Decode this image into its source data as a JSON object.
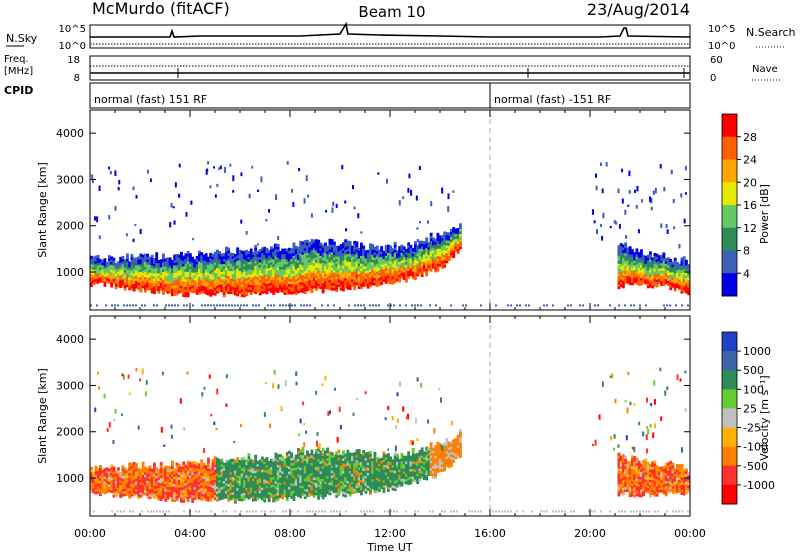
{
  "header": {
    "station": "McMurdo (fitACF)",
    "beam": "Beam 10",
    "date": "23/Aug/2014"
  },
  "summary": {
    "nsky_label": "N.Sky",
    "nsky_ticks": [
      "10^5",
      "10^0"
    ],
    "nsearch_label": "N.Search",
    "nsearch_ticks": [
      "10^5",
      "10^0"
    ],
    "freq_label": "Freq.",
    "freq_unit": "[MHz]",
    "freq_ticks": [
      "18",
      "8"
    ],
    "nave_label": "Nave",
    "nave_ticks": [
      "60",
      "0"
    ],
    "cpid_label": "CPID",
    "cpid_segments": [
      {
        "start": 0,
        "end": 16,
        "text": "normal (fast) 151 RF"
      },
      {
        "start": 16,
        "end": 24,
        "text": "normal (fast) -151 RF"
      }
    ]
  },
  "chart_data": [
    {
      "type": "heatmap",
      "ylabel": "Slant Range [km]",
      "ylim": [
        180,
        4500
      ],
      "yticks": [
        "1000",
        "2000",
        "3000",
        "4000"
      ],
      "xlim": [
        0,
        24
      ],
      "cbar_label": "Power [dB]",
      "cbar_ticks": [
        "4",
        "8",
        "12",
        "16",
        "20",
        "24",
        "28"
      ],
      "cbar_colors": [
        "#0000e6",
        "#3b60b8",
        "#2e8b57",
        "#64c864",
        "#e8e800",
        "#ffa500",
        "#ff6000",
        "#ff0000"
      ],
      "mode_change_time": 16,
      "echo_bands": [
        {
          "t": [
            0.0,
            1.0,
            2.0,
            3.0,
            4.0,
            5.0,
            6.0,
            7.0,
            8.0,
            9.0,
            10.0,
            11.0,
            12.0,
            13.0,
            14.0,
            14.8
          ],
          "lower": [
            750,
            700,
            620,
            540,
            520,
            520,
            520,
            540,
            560,
            600,
            640,
            700,
            760,
            900,
            1100,
            1500
          ],
          "upper": [
            1250,
            1250,
            1300,
            1300,
            1350,
            1400,
            1450,
            1500,
            1550,
            1650,
            1600,
            1550,
            1500,
            1600,
            1800,
            2000
          ]
        },
        {
          "t": [
            21.1,
            22.0,
            23.0,
            24.0
          ],
          "lower": [
            700,
            720,
            700,
            500
          ],
          "upper": [
            1550,
            1400,
            1300,
            1200
          ]
        }
      ]
    },
    {
      "type": "heatmap",
      "ylabel": "Slant Range [km]",
      "ylim": [
        180,
        4500
      ],
      "yticks": [
        "1000",
        "2000",
        "3000",
        "4000"
      ],
      "xlim": [
        0,
        24
      ],
      "xticks": [
        "00:00",
        "04:00",
        "08:00",
        "12:00",
        "16:00",
        "20:00",
        "00:00"
      ],
      "xlabel": "Time UT",
      "cbar_label": "Velocity [m s⁻¹]",
      "cbar_ticks": [
        "1000",
        "500",
        "100",
        "25",
        "-25",
        "-100",
        "-500",
        "-1000"
      ],
      "cbar_colors": [
        "#2040c8",
        "#3d63a8",
        "#2e8b57",
        "#66cc33",
        "#c0c0c0",
        "#ffb000",
        "#ff8000",
        "#ff3030",
        "#ff0000"
      ],
      "mode_change_time": 16,
      "echo_bands": [
        {
          "t": [
            0.0,
            1.0,
            2.0,
            3.0,
            4.0,
            5.0,
            6.0,
            7.0,
            8.0,
            9.0,
            10.0,
            11.0,
            12.0,
            13.0,
            14.0,
            14.8
          ],
          "lower": [
            650,
            650,
            600,
            550,
            520,
            520,
            520,
            540,
            560,
            600,
            640,
            700,
            760,
            900,
            1100,
            1500
          ],
          "upper": [
            1150,
            1200,
            1250,
            1250,
            1300,
            1350,
            1400,
            1450,
            1500,
            1600,
            1550,
            1500,
            1450,
            1550,
            1750,
            1950
          ]
        },
        {
          "t": [
            21.1,
            22.0,
            23.0,
            24.0
          ],
          "lower": [
            650,
            650,
            650,
            700
          ],
          "upper": [
            1450,
            1350,
            1250,
            1200
          ]
        }
      ]
    }
  ]
}
